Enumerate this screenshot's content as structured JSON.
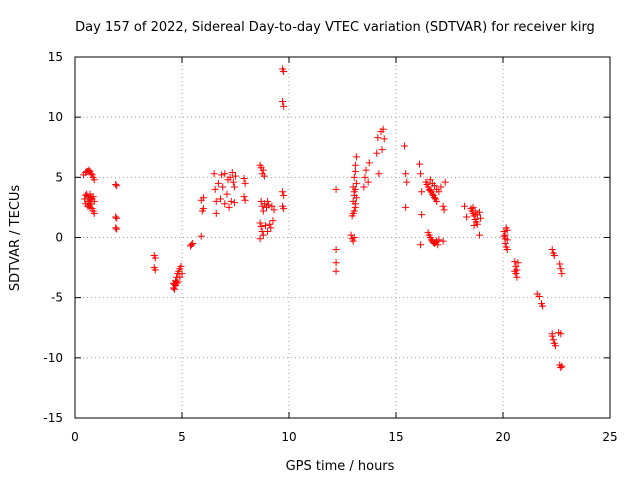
{
  "chart_data": {
    "type": "scatter",
    "title": "Day 157 of 2022, Sidereal Day-to-day VTEC variation (SDTVAR) for receiver kirg",
    "xlabel": "GPS time / hours",
    "ylabel": "SDTVAR / TECUs",
    "xlim": [
      0,
      25
    ],
    "ylim": [
      -15,
      15
    ],
    "xticks": [
      "0",
      "5",
      "10",
      "15",
      "20",
      "25"
    ],
    "yticks": [
      "-15",
      "-10",
      "-5",
      "0",
      "5",
      "10",
      "15"
    ],
    "grid": true,
    "marker": "+",
    "series": [
      {
        "name": "SDTVAR",
        "color": "#ff0000",
        "points": [
          [
            0.4,
            5.2
          ],
          [
            0.5,
            5.4
          ],
          [
            0.55,
            5.5
          ],
          [
            0.6,
            5.5
          ],
          [
            0.65,
            5.6
          ],
          [
            0.7,
            5.5
          ],
          [
            0.75,
            5.3
          ],
          [
            0.8,
            5.2
          ],
          [
            0.85,
            5.0
          ],
          [
            0.9,
            4.8
          ],
          [
            0.45,
            3.2
          ],
          [
            0.5,
            3.5
          ],
          [
            0.55,
            3.6
          ],
          [
            0.6,
            3.4
          ],
          [
            0.65,
            3.2
          ],
          [
            0.7,
            3.0
          ],
          [
            0.75,
            2.8
          ],
          [
            0.8,
            3.2
          ],
          [
            0.85,
            3.4
          ],
          [
            0.9,
            3.0
          ],
          [
            0.5,
            2.8
          ],
          [
            0.6,
            2.6
          ],
          [
            0.7,
            2.5
          ],
          [
            0.8,
            2.4
          ],
          [
            0.85,
            2.2
          ],
          [
            0.9,
            2.0
          ],
          [
            0.6,
            3.0
          ],
          [
            0.7,
            3.6
          ],
          [
            0.75,
            3.3
          ],
          [
            0.65,
            2.7
          ],
          [
            1.9,
            4.4
          ],
          [
            1.95,
            4.3
          ],
          [
            1.9,
            1.7
          ],
          [
            1.95,
            1.6
          ],
          [
            1.9,
            0.8
          ],
          [
            1.95,
            0.7
          ],
          [
            3.7,
            -1.5
          ],
          [
            3.75,
            -1.7
          ],
          [
            3.7,
            -2.5
          ],
          [
            3.75,
            -2.7
          ],
          [
            4.6,
            -4.2
          ],
          [
            4.65,
            -3.9
          ],
          [
            4.7,
            -3.6
          ],
          [
            4.75,
            -3.3
          ],
          [
            4.8,
            -3.0
          ],
          [
            4.85,
            -2.8
          ],
          [
            4.9,
            -2.6
          ],
          [
            4.95,
            -2.4
          ],
          [
            4.7,
            -4.0
          ],
          [
            4.8,
            -3.7
          ],
          [
            4.9,
            -3.3
          ],
          [
            5.0,
            -3.0
          ],
          [
            4.6,
            -3.8
          ],
          [
            4.65,
            -4.3
          ],
          [
            4.75,
            -3.8
          ],
          [
            5.4,
            -0.7
          ],
          [
            5.45,
            -0.6
          ],
          [
            5.5,
            -0.5
          ],
          [
            5.9,
            0.1
          ],
          [
            5.95,
            2.2
          ],
          [
            6.0,
            2.4
          ],
          [
            5.9,
            3.1
          ],
          [
            6.0,
            3.3
          ],
          [
            6.5,
            5.3
          ],
          [
            6.55,
            4.0
          ],
          [
            6.6,
            3.0
          ],
          [
            6.6,
            2.0
          ],
          [
            6.7,
            4.5
          ],
          [
            6.8,
            3.2
          ],
          [
            6.85,
            5.2
          ],
          [
            6.9,
            4.2
          ],
          [
            7.0,
            2.8
          ],
          [
            7.0,
            5.3
          ],
          [
            7.1,
            3.6
          ],
          [
            7.15,
            4.8
          ],
          [
            7.2,
            2.5
          ],
          [
            7.25,
            5.0
          ],
          [
            7.3,
            3.0
          ],
          [
            7.35,
            5.4
          ],
          [
            7.4,
            4.6
          ],
          [
            7.45,
            2.9
          ],
          [
            7.5,
            5.1
          ],
          [
            7.45,
            4.2
          ],
          [
            7.9,
            4.9
          ],
          [
            7.95,
            4.5
          ],
          [
            7.9,
            3.4
          ],
          [
            7.95,
            3.1
          ],
          [
            8.65,
            6.0
          ],
          [
            8.7,
            5.8
          ],
          [
            8.75,
            5.3
          ],
          [
            8.8,
            5.6
          ],
          [
            8.85,
            5.1
          ],
          [
            8.7,
            3.0
          ],
          [
            8.75,
            2.6
          ],
          [
            8.8,
            2.2
          ],
          [
            8.85,
            2.8
          ],
          [
            8.65,
            1.2
          ],
          [
            8.7,
            0.9
          ],
          [
            8.75,
            0.5
          ],
          [
            8.8,
            0.2
          ],
          [
            8.65,
            -0.1
          ],
          [
            8.9,
            1.0
          ],
          [
            8.95,
            2.5
          ],
          [
            9.0,
            3.0
          ],
          [
            9.05,
            2.7
          ],
          [
            9.1,
            1.1
          ],
          [
            9.15,
            0.8
          ],
          [
            9.2,
            2.6
          ],
          [
            9.25,
            1.4
          ],
          [
            9.3,
            2.3
          ],
          [
            9.0,
            0.5
          ],
          [
            9.7,
            14.0
          ],
          [
            9.75,
            13.8
          ],
          [
            9.7,
            11.3
          ],
          [
            9.75,
            10.9
          ],
          [
            9.7,
            3.8
          ],
          [
            9.75,
            3.5
          ],
          [
            9.7,
            2.6
          ],
          [
            9.75,
            2.4
          ],
          [
            12.2,
            4.0
          ],
          [
            12.2,
            -1.0
          ],
          [
            12.2,
            -2.1
          ],
          [
            12.2,
            -2.8
          ],
          [
            12.9,
            0.2
          ],
          [
            12.95,
            -0.1
          ],
          [
            13.0,
            -0.3
          ],
          [
            13.05,
            0.0
          ],
          [
            12.95,
            1.8
          ],
          [
            13.0,
            2.0
          ],
          [
            13.05,
            2.2
          ],
          [
            13.1,
            2.5
          ],
          [
            13.0,
            3.0
          ],
          [
            13.05,
            3.5
          ],
          [
            13.1,
            4.0
          ],
          [
            13.15,
            4.5
          ],
          [
            13.05,
            5.0
          ],
          [
            13.1,
            5.5
          ],
          [
            13.1,
            6.0
          ],
          [
            13.15,
            6.7
          ],
          [
            13.0,
            4.2
          ],
          [
            13.05,
            3.8
          ],
          [
            13.1,
            2.8
          ],
          [
            13.15,
            3.3
          ],
          [
            13.5,
            4.2
          ],
          [
            13.55,
            5.0
          ],
          [
            13.6,
            5.6
          ],
          [
            13.7,
            4.6
          ],
          [
            13.75,
            6.2
          ],
          [
            14.1,
            7.0
          ],
          [
            14.15,
            8.3
          ],
          [
            14.2,
            5.3
          ],
          [
            14.3,
            8.8
          ],
          [
            14.35,
            7.3
          ],
          [
            14.4,
            9.0
          ],
          [
            14.45,
            8.2
          ],
          [
            15.4,
            7.6
          ],
          [
            15.45,
            5.3
          ],
          [
            15.5,
            4.6
          ],
          [
            15.45,
            2.5
          ],
          [
            16.1,
            6.1
          ],
          [
            16.15,
            5.3
          ],
          [
            16.2,
            3.8
          ],
          [
            16.2,
            1.9
          ],
          [
            16.15,
            -0.6
          ],
          [
            16.4,
            4.6
          ],
          [
            16.45,
            4.4
          ],
          [
            16.5,
            4.2
          ],
          [
            16.55,
            4.0
          ],
          [
            16.6,
            3.9
          ],
          [
            16.65,
            3.8
          ],
          [
            16.7,
            3.6
          ],
          [
            16.75,
            3.5
          ],
          [
            16.8,
            3.3
          ],
          [
            16.85,
            3.2
          ],
          [
            16.9,
            3.0
          ],
          [
            16.5,
            0.4
          ],
          [
            16.55,
            0.2
          ],
          [
            16.6,
            0.0
          ],
          [
            16.65,
            -0.2
          ],
          [
            16.7,
            -0.3
          ],
          [
            16.75,
            -0.4
          ],
          [
            16.8,
            -0.5
          ],
          [
            16.85,
            -0.4
          ],
          [
            16.9,
            -0.3
          ],
          [
            16.95,
            -0.6
          ],
          [
            16.6,
            4.8
          ],
          [
            16.7,
            4.5
          ],
          [
            16.8,
            4.3
          ],
          [
            16.9,
            4.0
          ],
          [
            17.0,
            3.8
          ],
          [
            17.1,
            4.2
          ],
          [
            17.2,
            2.6
          ],
          [
            17.25,
            2.3
          ],
          [
            17.3,
            4.6
          ],
          [
            17.2,
            -0.3
          ],
          [
            17.0,
            -0.2
          ],
          [
            18.2,
            2.6
          ],
          [
            18.3,
            1.7
          ],
          [
            18.5,
            2.4
          ],
          [
            18.55,
            2.2
          ],
          [
            18.6,
            2.0
          ],
          [
            18.65,
            1.8
          ],
          [
            18.7,
            1.5
          ],
          [
            18.75,
            1.3
          ],
          [
            18.8,
            1.1
          ],
          [
            18.6,
            2.5
          ],
          [
            18.7,
            2.2
          ],
          [
            18.8,
            1.9
          ],
          [
            18.9,
            2.1
          ],
          [
            18.95,
            1.6
          ],
          [
            18.9,
            0.2
          ],
          [
            18.65,
            1.0
          ],
          [
            20.05,
            0.5
          ],
          [
            20.1,
            0.2
          ],
          [
            20.15,
            0.8
          ],
          [
            20.2,
            -0.2
          ],
          [
            20.1,
            -0.5
          ],
          [
            20.15,
            -0.8
          ],
          [
            20.2,
            -1.0
          ],
          [
            20.05,
            0.1
          ],
          [
            20.2,
            0.6
          ],
          [
            20.1,
            -0.1
          ],
          [
            20.55,
            -2.0
          ],
          [
            20.6,
            -2.4
          ],
          [
            20.65,
            -2.7
          ],
          [
            20.6,
            -3.0
          ],
          [
            20.65,
            -3.3
          ],
          [
            20.7,
            -2.1
          ],
          [
            20.55,
            -2.8
          ],
          [
            21.6,
            -4.7
          ],
          [
            21.7,
            -4.9
          ],
          [
            21.8,
            -5.5
          ],
          [
            21.85,
            -5.7
          ],
          [
            22.3,
            -1.0
          ],
          [
            22.35,
            -1.3
          ],
          [
            22.4,
            -1.5
          ],
          [
            22.3,
            -8.2
          ],
          [
            22.35,
            -8.5
          ],
          [
            22.4,
            -8.8
          ],
          [
            22.45,
            -9.0
          ],
          [
            22.3,
            -8.0
          ],
          [
            22.6,
            -7.9
          ],
          [
            22.65,
            -2.2
          ],
          [
            22.7,
            -2.6
          ],
          [
            22.75,
            -3.0
          ],
          [
            22.65,
            -10.6
          ],
          [
            22.7,
            -10.8
          ],
          [
            22.75,
            -10.7
          ],
          [
            22.7,
            -8.0
          ]
        ]
      }
    ]
  }
}
